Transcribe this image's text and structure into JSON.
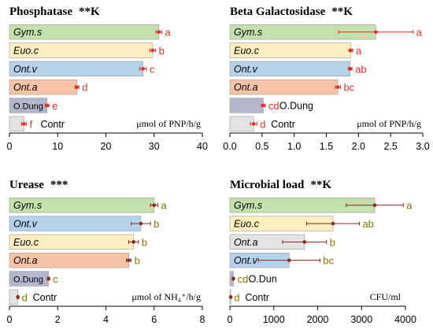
{
  "chart_data": [
    {
      "type": "bar",
      "title": "Phosphatase",
      "title_suffix": "**K",
      "unit_html": "μmol of PNP/h/g",
      "xlim": [
        0,
        40
      ],
      "ticks": [
        0,
        10,
        20,
        30,
        40
      ],
      "tick_labels": [
        "0",
        "10",
        "20",
        "30",
        "40"
      ],
      "errcolor": "#e0302a",
      "lettercolor": "#e0302a",
      "categories": [
        "Gym.s",
        "Euo.c",
        "Ont.v",
        "Ont.a",
        "O.Dung",
        "Contr"
      ],
      "values": [
        31,
        29.7,
        27.7,
        14,
        7.8,
        3
      ],
      "errors": [
        0.6,
        0.6,
        0.7,
        0.4,
        0.4,
        0.5
      ],
      "letters": [
        "a",
        "b",
        "c",
        "d",
        "e",
        "f"
      ],
      "fills": [
        "#c3e0ad",
        "#fdeec0",
        "#b6d1ec",
        "#f8c4a6",
        "#b4b6cc",
        "#e3e3e3"
      ],
      "label_out": [
        false,
        false,
        false,
        false,
        false,
        true
      ]
    },
    {
      "type": "bar",
      "title": "Beta Galactosidase",
      "title_suffix": "**K",
      "unit_html": "μmol of PNP/h/g",
      "xlim": [
        0,
        3
      ],
      "ticks": [
        0,
        0.5,
        1,
        1.5,
        2,
        2.5,
        3
      ],
      "tick_labels": [
        "0.0",
        "0.5",
        "1.0",
        "1.5",
        "2.0",
        "2.5",
        "3.0"
      ],
      "errcolor": "#e0302a",
      "lettercolor": "#e0302a",
      "categories": [
        "Gym.s",
        "Euo.c",
        "Ont.v",
        "Ont.a",
        "O.Dung",
        "Contr"
      ],
      "values": [
        2.27,
        1.88,
        1.87,
        1.68,
        0.52,
        0.37
      ],
      "errors": [
        0.58,
        0.03,
        0.03,
        0.04,
        0.03,
        0.05
      ],
      "letters": [
        "a",
        "a",
        "ab",
        "bc",
        "cd",
        "d"
      ],
      "fills": [
        "#c3e0ad",
        "#fdeec0",
        "#b6d1ec",
        "#f8c4a6",
        "#b4b6cc",
        "#e3e3e3"
      ],
      "label_out": [
        false,
        false,
        false,
        false,
        true,
        true
      ]
    },
    {
      "type": "bar",
      "title": "Urease",
      "title_suffix": "***",
      "unit_html": "μmol of NH₄⁺/h/g",
      "xlim": [
        0,
        8
      ],
      "ticks": [
        0,
        2,
        4,
        6,
        8
      ],
      "tick_labels": [
        "0",
        "2",
        "4",
        "6",
        "8"
      ],
      "errcolor": "#8b2a1b",
      "lettercolor": "#8a7200",
      "categories": [
        "Gym.s",
        "Ont.v",
        "Euo.c",
        "Ont.a",
        "O.Dung",
        "Contr"
      ],
      "values": [
        6,
        5.45,
        5.15,
        4.95,
        1.62,
        0.35
      ],
      "errors": [
        0.15,
        0.4,
        0.2,
        0.1,
        0.05,
        0.03
      ],
      "letters": [
        "a",
        "b",
        "b",
        "b",
        "c",
        "d"
      ],
      "fills": [
        "#c3e0ad",
        "#b6d1ec",
        "#fdeec0",
        "#f8c4a6",
        "#b4b6cc",
        "#e3e3e3"
      ],
      "label_out": [
        false,
        false,
        false,
        false,
        false,
        true
      ]
    },
    {
      "type": "bar",
      "title": "Microbial load",
      "title_suffix": "**K",
      "unit_html": "CFU/ml",
      "xlim": [
        0,
        4000
      ],
      "ticks": [
        0,
        1000,
        2000,
        3000,
        4000
      ],
      "tick_labels": [
        "0",
        "1000",
        "2000",
        "3000",
        "4000"
      ],
      "errcolor": "#8b2a1b",
      "lettercolor": "#8a7200",
      "categories": [
        "Gym.s",
        "Euo.c",
        "Ont.a",
        "Ont.v",
        "O.Dun",
        "Contr"
      ],
      "values": [
        3300,
        2350,
        1700,
        1350,
        80,
        20
      ],
      "errors": [
        650,
        600,
        500,
        700,
        20,
        5
      ],
      "letters": [
        "a",
        "ab",
        "b",
        "bc",
        "cd",
        "d"
      ],
      "fills": [
        "#c3e0ad",
        "#fdeec0",
        "#e3e3e3",
        "#b6d1ec",
        "#b4b6cc",
        "#e3e3e3"
      ],
      "label_out": [
        false,
        false,
        false,
        false,
        true,
        true
      ]
    }
  ]
}
